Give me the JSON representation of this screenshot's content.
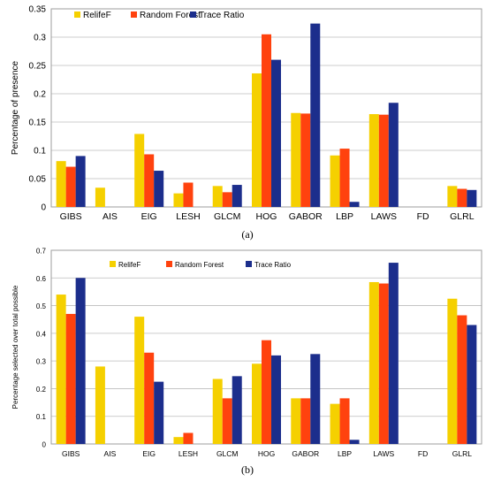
{
  "chart_data": [
    {
      "type": "bar",
      "panel": "(a)",
      "ylabel": "Percentage of presence",
      "xlabel": "",
      "ylim": [
        0,
        0.35
      ],
      "yticks": [
        "0",
        "0.05",
        "0.1",
        "0.15",
        "0.2",
        "0.25",
        "0.3",
        "0.35"
      ],
      "ytick_values": [
        0,
        0.05,
        0.1,
        0.15,
        0.2,
        0.25,
        0.3,
        0.35
      ],
      "grid": true,
      "legend_position": "top-left",
      "categories": [
        "GIBS",
        "AIS",
        "EIG",
        "LESH",
        "GLCM",
        "HOG",
        "GABOR",
        "LBP",
        "LAWS",
        "FD",
        "GLRL"
      ],
      "series": [
        {
          "name": "RelifeF",
          "color": "#f5d000",
          "values": [
            0.081,
            0.034,
            0.129,
            0.024,
            0.037,
            0.236,
            0.166,
            0.091,
            0.164,
            0,
            0.037
          ]
        },
        {
          "name": "Random Forest",
          "color": "#ff420e",
          "values": [
            0.071,
            0,
            0.093,
            0.043,
            0.026,
            0.305,
            0.165,
            0.103,
            0.163,
            0,
            0.032
          ]
        },
        {
          "name": "Trace Ratio",
          "color": "#1c2e8c",
          "values": [
            0.09,
            0,
            0.064,
            0,
            0.039,
            0.26,
            0.324,
            0.009,
            0.184,
            0,
            0.03
          ]
        }
      ]
    },
    {
      "type": "bar",
      "panel": "(b)",
      "ylabel": "Percentage selected over total possible",
      "xlabel": "",
      "ylim": [
        0,
        0.7
      ],
      "yticks": [
        "0",
        "0.1",
        "0.2",
        "0.3",
        "0.4",
        "0.5",
        "0.6",
        "0.7"
      ],
      "ytick_values": [
        0,
        0.1,
        0.2,
        0.3,
        0.4,
        0.5,
        0.6,
        0.7
      ],
      "grid": true,
      "legend_position": "top-left",
      "categories": [
        "GIBS",
        "AIS",
        "EIG",
        "LESH",
        "GLCM",
        "HOG",
        "GABOR",
        "LBP",
        "LAWS",
        "FD",
        "GLRL"
      ],
      "series": [
        {
          "name": "RelifeF",
          "color": "#f5d000",
          "values": [
            0.54,
            0.28,
            0.46,
            0.025,
            0.235,
            0.29,
            0.165,
            0.145,
            0.585,
            0,
            0.525
          ]
        },
        {
          "name": "Random Forest",
          "color": "#ff420e",
          "values": [
            0.47,
            0,
            0.33,
            0.04,
            0.165,
            0.375,
            0.165,
            0.165,
            0.58,
            0,
            0.465
          ]
        },
        {
          "name": "Trace Ratio",
          "color": "#1c2e8c",
          "values": [
            0.6,
            0,
            0.225,
            0,
            0.245,
            0.32,
            0.325,
            0.015,
            0.655,
            0,
            0.43
          ]
        }
      ]
    }
  ]
}
